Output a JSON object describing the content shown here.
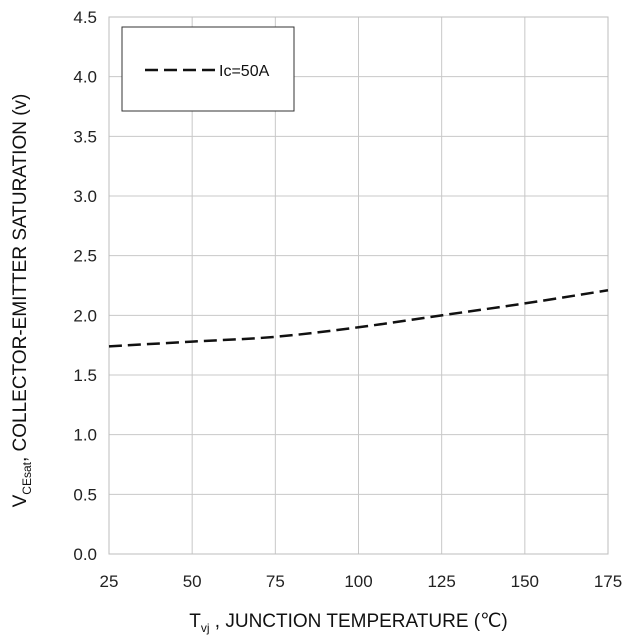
{
  "chart_data": {
    "type": "line",
    "xlabel": {
      "main": "T",
      "sub": "vj",
      "rest": " , JUNCTION TEMPERATURE (℃)"
    },
    "ylabel": {
      "main": "V",
      "sub": "CEsat",
      "rest": ", COLLECTOR-EMITTER SATURATION (v)"
    },
    "xlim": [
      25,
      175
    ],
    "ylim": [
      0,
      4.5
    ],
    "x_ticks": [
      25,
      50,
      75,
      100,
      125,
      150,
      175
    ],
    "y_ticks": [
      "0.0",
      "0.5",
      "1.0",
      "1.5",
      "2.0",
      "2.5",
      "3.0",
      "3.5",
      "4.0",
      "4.5"
    ],
    "grid": true,
    "legend_position": "top-left",
    "series": [
      {
        "name": "Ic=50A",
        "line_style": "dashed",
        "color": "#111111",
        "x": [
          25,
          50,
          75,
          100,
          125,
          150,
          175
        ],
        "y": [
          1.74,
          1.78,
          1.82,
          1.9,
          2.0,
          2.1,
          2.21
        ]
      }
    ]
  }
}
